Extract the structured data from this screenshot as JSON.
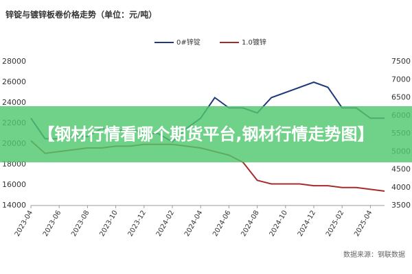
{
  "chart_data": {
    "type": "line",
    "title": "锌锭与镀锌板卷价格走势（单位：元/吨）",
    "categories": [
      "2023-04",
      null,
      "2023-06",
      null,
      "2023-08",
      null,
      "2023-10",
      null,
      "2023-12",
      null,
      "2024-02",
      null,
      "2024-04",
      null,
      "2024-06",
      null,
      "2024-08",
      null,
      "2024-10",
      null,
      "2024-12",
      null,
      "2025-02",
      null,
      "2025-04",
      null
    ],
    "series": [
      {
        "name": "0#锌锭",
        "color": "#1f3a7a",
        "values": [
          22500,
          20500,
          20500,
          20800,
          20700,
          21500,
          21200,
          21500,
          21000,
          21000,
          20200,
          21500,
          22500,
          24500,
          23500,
          23500,
          23000,
          24500,
          25000,
          25500,
          26000,
          25500,
          23500,
          23500,
          22500,
          22500
        ]
      },
      {
        "name": "1.0镀锌",
        "color": "#a52a2a",
        "axis": "y2",
        "values": [
          5300,
          4950,
          5000,
          5050,
          5100,
          5100,
          5150,
          5150,
          5200,
          5200,
          5200,
          5150,
          5100,
          5000,
          4900,
          4700,
          4200,
          4100,
          4100,
          4100,
          4050,
          4050,
          4000,
          4000,
          3950,
          3900
        ]
      }
    ],
    "ylim": [
      14000,
      28000
    ],
    "yticks": [
      14000,
      16000,
      18000,
      20000,
      22000,
      24000,
      26000,
      28000
    ],
    "y2lim": [
      3500,
      7500
    ],
    "y2ticks": [
      3500,
      4000,
      4500,
      5000,
      5500,
      6000,
      6500,
      7000,
      7500
    ],
    "source": "数据来源：钢联数据"
  },
  "banner": "【钢材行情看哪个期货平台,钢材行情走势图】"
}
